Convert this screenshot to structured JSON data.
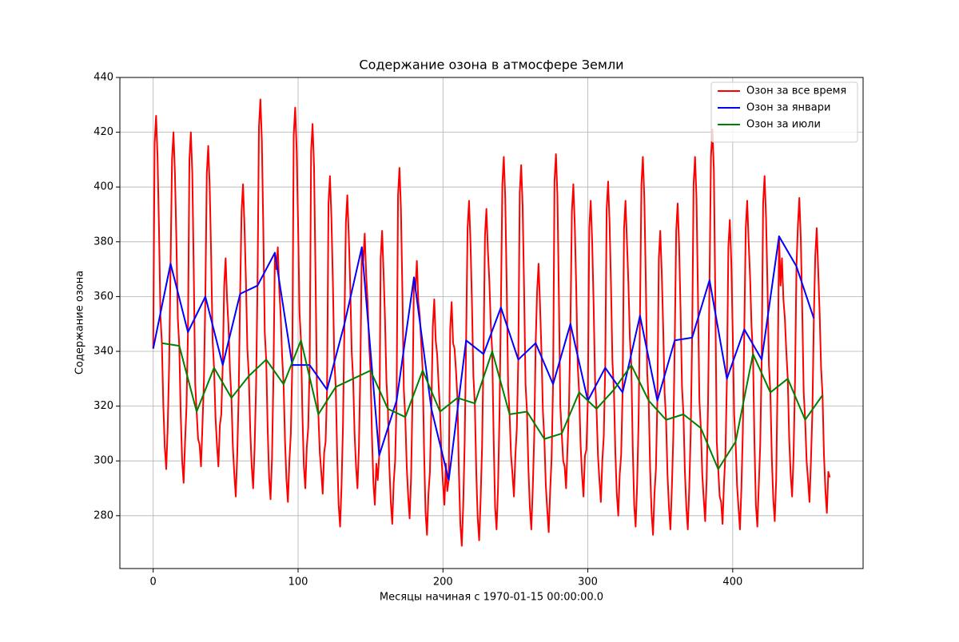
{
  "chart_data": {
    "type": "line",
    "title": "Содержание озона в атмосфере Земли",
    "xlabel": "Месяцы начиная с 1970-01-15 00:00:00.0",
    "ylabel": "Содержание озона",
    "xlim": [
      -23,
      490
    ],
    "ylim": [
      260.7,
      440
    ],
    "xticks": [
      0,
      100,
      200,
      300,
      400
    ],
    "yticks": [
      280,
      300,
      320,
      340,
      360,
      380,
      400,
      420,
      440
    ],
    "grid": true,
    "legend": "upper right",
    "series": [
      {
        "name": "Озон за все время",
        "color": "#ff0000",
        "x": [
          0,
          1,
          2,
          3,
          4,
          5,
          6,
          7,
          8,
          9,
          10,
          11,
          12,
          13,
          14,
          15,
          16,
          17,
          18,
          19,
          20,
          21,
          22,
          23,
          24,
          25,
          26,
          27,
          28,
          29,
          30,
          31,
          32,
          33,
          34,
          35,
          36,
          37,
          38,
          39,
          40,
          41,
          42,
          43,
          44,
          45,
          46,
          47,
          48,
          49,
          50,
          51,
          52,
          53,
          54,
          55,
          56,
          57,
          58,
          59,
          60,
          61,
          62,
          63,
          64,
          65,
          66,
          67,
          68,
          69,
          70,
          71,
          72,
          73,
          74,
          75,
          76,
          77,
          78,
          79,
          80,
          81,
          82,
          83,
          84,
          85,
          86,
          87,
          88,
          89,
          90,
          91,
          92,
          93,
          94,
          95,
          96,
          97,
          98,
          99,
          100,
          101,
          102,
          103,
          104,
          105,
          106,
          107,
          108,
          109,
          110,
          111,
          112,
          113,
          114,
          115,
          116,
          117,
          118,
          119,
          120,
          121,
          122,
          123,
          124,
          125,
          126,
          127,
          128,
          129,
          130,
          131,
          132,
          133,
          134,
          135,
          136,
          137,
          138,
          139,
          140,
          141,
          142,
          143,
          144,
          145,
          146,
          147,
          148,
          149,
          150,
          151,
          152,
          153,
          154,
          155,
          156,
          157,
          158,
          159,
          160,
          161,
          162,
          163,
          164,
          165,
          166,
          167,
          168,
          169,
          170,
          171,
          172,
          173,
          174,
          175,
          176,
          177,
          178,
          179,
          180,
          181,
          182,
          183,
          184,
          185,
          186,
          187,
          188,
          189,
          190,
          191,
          192,
          193,
          194,
          195,
          196,
          197,
          198,
          199,
          200,
          201,
          202,
          203,
          204,
          205,
          206,
          207,
          208,
          209,
          210,
          211,
          212,
          213,
          214,
          215,
          216,
          217,
          218,
          219,
          220,
          221,
          222,
          223,
          224,
          225,
          226,
          227,
          228,
          229,
          230,
          231,
          232,
          233,
          234,
          235,
          236,
          237,
          238,
          239,
          240,
          241,
          242,
          243,
          244,
          245,
          246,
          247,
          248,
          249,
          250,
          251,
          252,
          253,
          254,
          255,
          256,
          257,
          258,
          259,
          260,
          261,
          262,
          263,
          264,
          265,
          266,
          267,
          268,
          269,
          270,
          271,
          272,
          273,
          274,
          275,
          276,
          277,
          278,
          279,
          280,
          281,
          282,
          283,
          284,
          285,
          286,
          287,
          288,
          289,
          290,
          291,
          292,
          293,
          294,
          295,
          296,
          297,
          298,
          299,
          300,
          301,
          302,
          303,
          304,
          305,
          306,
          307,
          308,
          309,
          310,
          311,
          312,
          313,
          314,
          315,
          316,
          317,
          318,
          319,
          320,
          321,
          322,
          323,
          324,
          325,
          326,
          327,
          328,
          329,
          330,
          331,
          332,
          333,
          334,
          335,
          336,
          337,
          338,
          339,
          340,
          341,
          342,
          343,
          344,
          345,
          346,
          347,
          348,
          349,
          350,
          351,
          352,
          353,
          354,
          355,
          356,
          357,
          358,
          359,
          360,
          361,
          362,
          363,
          364,
          365,
          366,
          367,
          368,
          369,
          370,
          371,
          372,
          373,
          374,
          375,
          376,
          377,
          378,
          379,
          380,
          381,
          382,
          383,
          384,
          385,
          386,
          387,
          388,
          389,
          390,
          391,
          392,
          393,
          394,
          395,
          396,
          397,
          398,
          399,
          400,
          401,
          402,
          403,
          404,
          405,
          406,
          407,
          408,
          409,
          410,
          411,
          412,
          413,
          414,
          415,
          416,
          417,
          418,
          419,
          420,
          421,
          422,
          423,
          424,
          425,
          426,
          427,
          428,
          429,
          430,
          431,
          432,
          433,
          434,
          435,
          436,
          437,
          438,
          439,
          440,
          441,
          442,
          443,
          444,
          445,
          446,
          447,
          448,
          449,
          450,
          451,
          452,
          453,
          454,
          455,
          456,
          457,
          458,
          459,
          460,
          461,
          462,
          463,
          464,
          465,
          466,
          467
        ],
        "values": [
          341,
          416,
          426,
          411,
          385,
          353,
          343,
          320,
          305,
          297,
          312,
          335,
          372,
          410,
          420,
          405,
          381,
          352,
          342,
          317,
          300,
          292,
          307,
          320,
          347,
          410,
          420,
          405,
          369,
          328,
          318,
          308,
          306,
          298,
          313,
          329,
          360,
          405,
          415,
          400,
          375,
          344,
          334,
          316,
          306,
          298,
          313,
          317,
          335,
          364,
          374,
          359,
          349,
          333,
          323,
          305,
          295,
          287,
          302,
          324,
          361,
          391,
          401,
          386,
          366,
          341,
          331,
          311,
          298,
          290,
          305,
          327,
          364,
          422,
          432,
          417,
          385,
          347,
          337,
          312,
          294,
          286,
          301,
          331,
          376,
          370,
          378,
          363,
          353,
          338,
          328,
          307,
          293,
          285,
          300,
          310,
          335,
          419,
          429,
          414,
          387,
          354,
          344,
          317,
          298,
          290,
          305,
          312,
          335,
          413,
          423,
          408,
          370,
          327,
          317,
          303,
          296,
          288,
          303,
          307,
          326,
          394,
          404,
          389,
          366,
          337,
          327,
          302,
          284,
          276,
          291,
          313,
          350,
          387,
          397,
          382,
          364,
          340,
          330,
          310,
          298,
          290,
          305,
          334,
          378,
          373,
          383,
          368,
          358,
          343,
          333,
          309,
          292,
          284,
          299,
          293,
          302,
          374,
          384,
          369,
          352,
          329,
          319,
          298,
          285,
          277,
          292,
          300,
          322,
          397,
          407,
          392,
          362,
          326,
          316,
          298,
          287,
          279,
          294,
          323,
          367,
          363,
          373,
          358,
          353,
          343,
          333,
          303,
          281,
          273,
          288,
          296,
          319,
          349,
          359,
          344,
          339,
          328,
          318,
          301,
          292,
          284,
          299,
          289,
          293,
          348,
          358,
          343,
          341,
          333,
          323,
          296,
          277,
          269,
          284,
          307,
          344,
          385,
          395,
          380,
          358,
          331,
          321,
          296,
          279,
          271,
          286,
          305,
          339,
          382,
          392,
          377,
          366,
          350,
          340,
          308,
          283,
          275,
          290,
          316,
          356,
          401,
          411,
          396,
          364,
          327,
          317,
          302,
          295,
          287,
          302,
          312,
          337,
          398,
          408,
          393,
          363,
          328,
          318,
          297,
          283,
          275,
          290,
          309,
          343,
          362,
          372,
          357,
          340,
          318,
          308,
          291,
          282,
          274,
          289,
          301,
          328,
          402,
          412,
          397,
          361,
          320,
          310,
          300,
          298,
          290,
          305,
          320,
          350,
          391,
          401,
          386,
          363,
          335,
          325,
          306,
          295,
          287,
          302,
          304,
          322,
          385,
          395,
          380,
          357,
          329,
          319,
          302,
          293,
          285,
          300,
          309,
          334,
          392,
          402,
          387,
          364,
          336,
          326,
          303,
          288,
          280,
          295,
          302,
          325,
          385,
          395,
          380,
          365,
          345,
          335,
          305,
          284,
          276,
          291,
          314,
          353,
          401,
          411,
          396,
          366,
          332,
          322,
          297,
          281,
          273,
          288,
          297,
          322,
          374,
          384,
          369,
          349,
          325,
          315,
          295,
          283,
          275,
          290,
          309,
          344,
          384,
          394,
          379,
          355,
          327,
          317,
          296,
          283,
          275,
          290,
          310,
          345,
          401,
          411,
          396,
          361,
          322,
          312,
          295,
          286,
          278,
          293,
          322,
          366,
          411,
          421,
          406,
          359,
          307,
          297,
          287,
          285,
          277,
          292,
          303,
          330,
          378,
          388,
          373,
          347,
          317,
          307,
          291,
          283,
          275,
          290,
          311,
          348,
          385,
          395,
          380,
          367,
          349,
          339,
          307,
          284,
          276,
          291,
          306,
          337,
          394,
          404,
          389,
          364,
          335,
          325,
          301,
          286,
          278,
          293,
          330,
          382,
          364,
          374,
          359,
          352,
          340,
          330,
          308,
          295,
          287,
          302,
          329,
          371,
          386,
          396,
          381,
          355,
          325,
          315,
          300,
          293,
          285,
          300,
          318,
          352,
          375,
          385,
          370,
          354,
          334,
          324,
          302,
          289,
          281,
          296,
          294
        ]
      },
      {
        "name": "Озон за январи",
        "color": "#0000ff",
        "x": [
          0,
          12,
          24,
          36,
          48,
          60,
          72,
          84,
          96,
          108,
          120,
          132,
          144,
          156,
          168,
          180,
          192,
          204,
          216,
          228,
          240,
          252,
          264,
          276,
          288,
          300,
          312,
          324,
          336,
          348,
          360,
          372,
          384,
          396,
          408,
          420,
          432,
          444,
          456
        ],
        "values": [
          341,
          372,
          347,
          360,
          335,
          361,
          364,
          376,
          335,
          335,
          326,
          350,
          378,
          302,
          322,
          367,
          319,
          293,
          344,
          339,
          356,
          337,
          343,
          328,
          350,
          322,
          334,
          325,
          353,
          322,
          344,
          345,
          366,
          330,
          348,
          337,
          382,
          371,
          352
        ]
      },
      {
        "name": "Озон за июли",
        "color": "#008000",
        "x": [
          6,
          18,
          30,
          42,
          54,
          66,
          78,
          90,
          102,
          114,
          126,
          138,
          150,
          162,
          174,
          186,
          198,
          210,
          222,
          234,
          246,
          258,
          270,
          282,
          294,
          306,
          318,
          330,
          342,
          354,
          366,
          378,
          390,
          402,
          414,
          426,
          438,
          450,
          462
        ],
        "values": [
          343,
          342,
          318,
          334,
          323,
          331,
          337,
          328,
          344,
          317,
          327,
          330,
          333,
          319,
          316,
          333,
          318,
          323,
          321,
          340,
          317,
          318,
          308,
          310,
          325,
          319,
          326,
          335,
          322,
          315,
          317,
          312,
          297,
          307,
          339,
          325,
          330,
          315,
          324
        ]
      }
    ]
  }
}
